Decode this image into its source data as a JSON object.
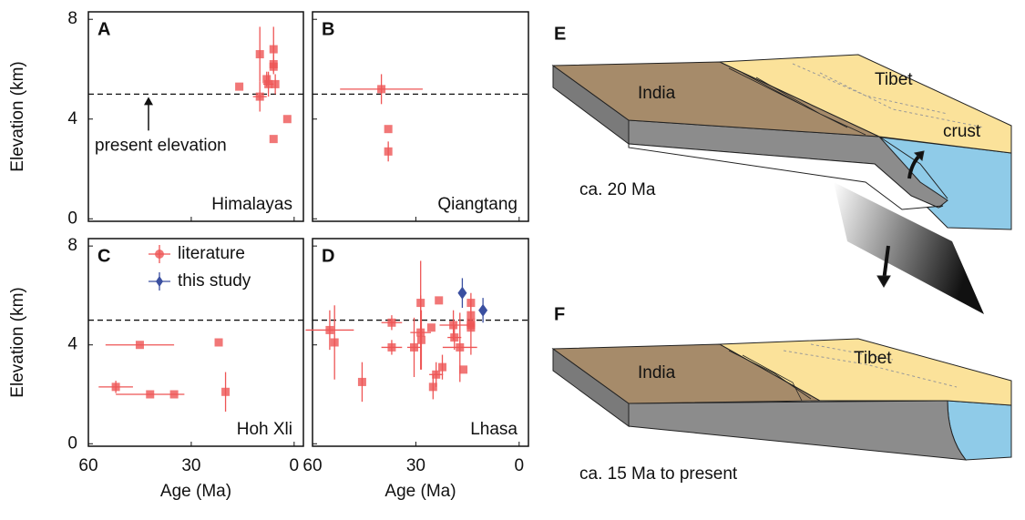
{
  "chart_data": [
    {
      "type": "scatter",
      "panel": "A",
      "location": "Himalayas",
      "ylabel": "Elevation (km)",
      "annotation": "present elevation",
      "xlim": [
        60,
        -2.7
      ],
      "ylim": [
        -0.1,
        8.3
      ],
      "xticks": [
        60,
        30,
        0
      ],
      "yticks": [
        0,
        4,
        8
      ],
      "xtick_labels": false,
      "ytick_labels": true,
      "reference_line": 5,
      "series": [
        {
          "color": "#ee5555",
          "marker": "square",
          "x": [
            16,
            10,
            10,
            8,
            7.5,
            6,
            6,
            6,
            5.5,
            6,
            2
          ],
          "values": [
            5.3,
            6.6,
            4.9,
            5.6,
            5.4,
            6.8,
            6.2,
            6.1,
            5.4,
            3.2,
            4.0
          ],
          "yerr": [
            null,
            1.1,
            0.6,
            0.3,
            0.5,
            0.9,
            0.4,
            null,
            0.4,
            null,
            null
          ],
          "xerr": [
            null,
            null,
            2,
            null,
            1.5,
            null,
            null,
            null,
            null,
            null,
            null
          ]
        }
      ]
    },
    {
      "type": "scatter",
      "panel": "B",
      "location": "Qiangtang",
      "xlim": [
        60,
        -2.7
      ],
      "ylim": [
        -0.1,
        8.3
      ],
      "xticks": [
        60,
        30,
        0
      ],
      "yticks": [
        0,
        4,
        8
      ],
      "xtick_labels": false,
      "ytick_labels": false,
      "reference_line": 5,
      "series": [
        {
          "color": "#ee5555",
          "marker": "square",
          "x": [
            40,
            38,
            38
          ],
          "values": [
            5.2,
            3.6,
            2.7
          ],
          "yerr": [
            0.6,
            null,
            0.4
          ],
          "xerr": [
            12,
            null,
            null
          ]
        }
      ]
    },
    {
      "type": "scatter",
      "panel": "C",
      "location": "Hoh Xli",
      "ylabel": "Elevation (km)",
      "xlabel": "Age (Ma)",
      "xlim": [
        60,
        -2.7
      ],
      "ylim": [
        -0.1,
        8.3
      ],
      "xticks": [
        60,
        30,
        0
      ],
      "yticks": [
        0,
        4,
        8
      ],
      "xtick_labels": true,
      "ytick_labels": true,
      "reference_line": 5,
      "legend": "upper left",
      "series": [
        {
          "name": "literature",
          "color": "#ee5555",
          "marker": "square",
          "x": [
            45,
            22,
            52,
            42,
            35,
            20
          ],
          "values": [
            4.0,
            4.1,
            2.3,
            2.0,
            2.0,
            2.1
          ],
          "yerr": [
            null,
            null,
            0.25,
            null,
            null,
            0.8
          ],
          "xerr": [
            10,
            null,
            5,
            10,
            null,
            null
          ]
        },
        {
          "name": "this study",
          "color": "#3a4fa0",
          "marker": "diamond",
          "x": [],
          "values": [],
          "yerr": [],
          "xerr": []
        }
      ]
    },
    {
      "type": "scatter",
      "panel": "D",
      "location": "Lhasa",
      "xlabel": "Age (Ma)",
      "xlim": [
        60,
        -2.7
      ],
      "ylim": [
        -0.1,
        8.3
      ],
      "xticks": [
        60,
        30,
        0
      ],
      "yticks": [
        0,
        4,
        8
      ],
      "xtick_labels": true,
      "ytick_labels": false,
      "reference_line": 5,
      "series": [
        {
          "color": "#ee5555",
          "marker": "square",
          "x": [
            55,
            53.6,
            45.6,
            37,
            37,
            30.5,
            28.6,
            28.6,
            28.4,
            25.5,
            25,
            24.1,
            23.3,
            22.3,
            19.1,
            18.8,
            17.2,
            16.2,
            14,
            14,
            14,
            14,
            14
          ],
          "values": [
            4.6,
            4.1,
            2.5,
            4.9,
            3.9,
            3.9,
            5.7,
            4.5,
            4.2,
            4.7,
            2.3,
            2.8,
            5.8,
            3.1,
            4.8,
            4.3,
            3.9,
            3.0,
            5.7,
            5.2,
            4.9,
            4.8,
            4.7
          ],
          "yerr": [
            0.8,
            1.5,
            0.8,
            0.3,
            0.3,
            1.2,
            1.7,
            1.5,
            1.2,
            null,
            0.5,
            0.5,
            null,
            0.5,
            0.6,
            0.5,
            1.4,
            null,
            0.4,
            null,
            null,
            null,
            1.1
          ],
          "xerr": [
            7,
            null,
            null,
            3,
            3,
            2,
            null,
            3,
            null,
            null,
            null,
            2,
            null,
            null,
            4,
            2,
            5,
            null,
            null,
            null,
            null,
            null,
            null
          ]
        },
        {
          "color": "#3a4fa0",
          "marker": "diamond",
          "x": [
            16.5,
            10.5
          ],
          "values": [
            6.1,
            5.4
          ],
          "yerr": [
            0.6,
            0.5
          ],
          "xerr": [
            null,
            null
          ]
        }
      ]
    }
  ],
  "diagrams": [
    {
      "label": "E",
      "plate": "India",
      "plateau": "Tibet",
      "layer": "crust",
      "time": "ca. 20 Ma"
    },
    {
      "label": "F",
      "plate": "India",
      "plateau": "Tibet",
      "time": "ca. 15 Ma to present"
    }
  ]
}
